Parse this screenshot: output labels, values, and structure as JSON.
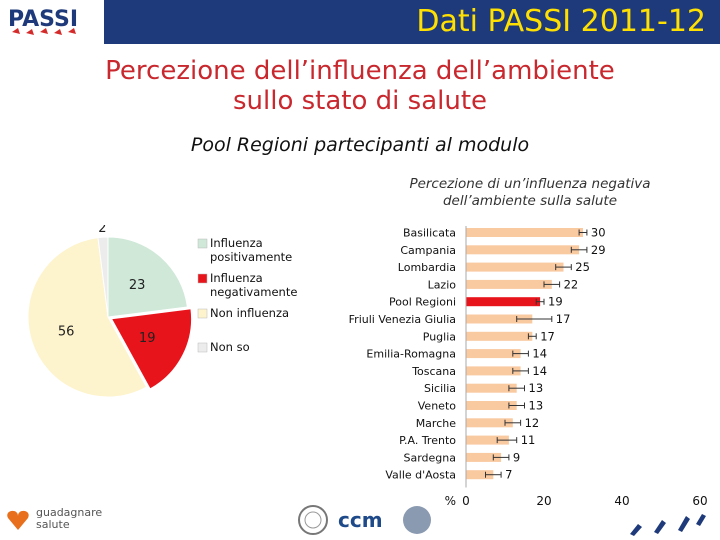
{
  "header": {
    "title": "Dati PASSI 2011-12"
  },
  "slide": {
    "title_line1": "Percezione dell’influenza dell’ambiente",
    "title_line2": "sullo stato di salute",
    "subtitle": "Pool Regioni partecipanti al modulo"
  },
  "logos": {
    "passi": "PASSI",
    "guadagnare_line1": "guadagnare",
    "guadagnare_line2": "salute",
    "ccm": "ccm"
  },
  "colors": {
    "header_bg": "#1e3a7a",
    "header_text": "#ffe000",
    "title_red": "#c8282e",
    "bar_default": "#f9c9a0",
    "bar_highlight": "#e8141c",
    "pie_positive": "#cfe8d8",
    "pie_negative": "#e8141c",
    "pie_none": "#fdf3cc",
    "pie_nonso": "#ececec"
  },
  "chart_data": [
    {
      "type": "pie",
      "slices": [
        {
          "label": "Influenza positivamente",
          "value": 23,
          "color": "#cfe8d8"
        },
        {
          "label": "Influenza negativamente",
          "value": 19,
          "color": "#e8141c"
        },
        {
          "label": "Non influenza",
          "value": 56,
          "color": "#fdf3cc"
        },
        {
          "label": "Non so",
          "value": 2,
          "color": "#ececec"
        }
      ],
      "legend_position": "right"
    },
    {
      "type": "bar",
      "orientation": "horizontal",
      "title": "Percezione di un’influenza negativa dell’ambiente sulla salute",
      "title_line1": "Percezione di un’influenza negativa",
      "title_line2": "dell’ambiente sulla salute",
      "axis_unit": "%",
      "xlim": [
        0,
        60
      ],
      "xticks": [
        0,
        20,
        40,
        60
      ],
      "error_bars": true,
      "categories": [
        "Basilicata",
        "Campania",
        "Lombardia",
        "Lazio",
        "Pool Regioni",
        "Friuli Venezia Giulia",
        "Puglia",
        "Emilia-Romagna",
        "Toscana",
        "Sicilia",
        "Veneto",
        "Marche",
        "P.A. Trento",
        "Sardegna",
        "Valle d'Aosta"
      ],
      "values": [
        30,
        29,
        25,
        22,
        19,
        17,
        17,
        14,
        14,
        13,
        13,
        12,
        11,
        9,
        7
      ],
      "ci_low": [
        29,
        27,
        23,
        20,
        18,
        13,
        16,
        12,
        12,
        11,
        11,
        10,
        8,
        7,
        5
      ],
      "ci_high": [
        31,
        31,
        27,
        24,
        20,
        22,
        18,
        16,
        16,
        15,
        15,
        14,
        13,
        11,
        9
      ],
      "highlight": "Pool Regioni"
    }
  ]
}
